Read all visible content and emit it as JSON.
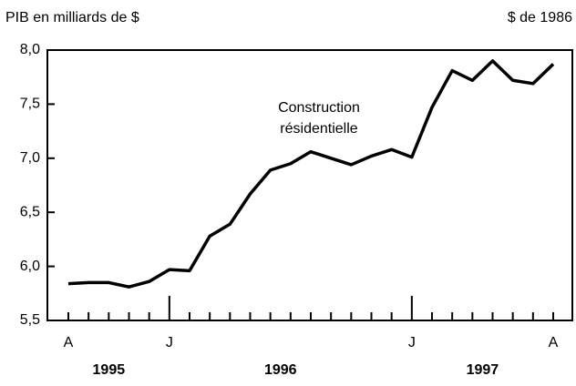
{
  "chart_data": {
    "type": "line",
    "y_unit_label": "PIB en milliards de $",
    "note": "$ de 1986",
    "annotation": [
      "Construction",
      "résidentielle"
    ],
    "categories": [
      "A",
      null,
      null,
      null,
      null,
      "J",
      null,
      null,
      null,
      null,
      null,
      null,
      null,
      null,
      null,
      null,
      null,
      "J",
      null,
      null,
      null,
      null,
      null,
      null,
      "A"
    ],
    "year_labels": [
      "1995",
      "1996",
      "1997"
    ],
    "series": [
      {
        "name": "Construction résidentielle",
        "color": "#000000",
        "values": [
          5.84,
          5.85,
          5.85,
          5.81,
          5.86,
          5.97,
          5.96,
          6.28,
          6.39,
          6.67,
          6.89,
          6.95,
          7.06,
          7.0,
          6.94,
          7.02,
          7.08,
          7.01,
          7.47,
          7.81,
          7.72,
          7.9,
          7.72,
          7.69,
          7.87
        ]
      }
    ],
    "ylim": [
      5.5,
      8.0
    ],
    "yticks": [
      {
        "value": 5.5,
        "label": "5,5"
      },
      {
        "value": 6.0,
        "label": "6,0"
      },
      {
        "value": 6.5,
        "label": "6,5"
      },
      {
        "value": 7.0,
        "label": "7,0"
      },
      {
        "value": 7.5,
        "label": "7,5"
      },
      {
        "value": 8.0,
        "label": "8,0"
      }
    ]
  }
}
